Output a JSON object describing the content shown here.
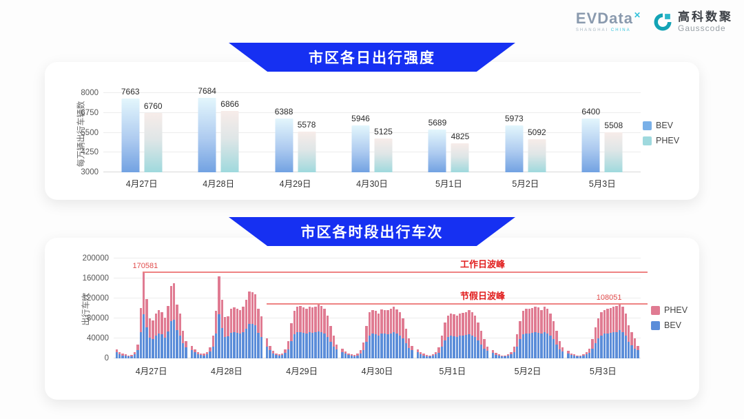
{
  "header": {
    "evdata_text": "EVData",
    "evdata_sup": "✕",
    "evdata_sub_left": "SHANGHAI ",
    "evdata_sub_right": "CHINA",
    "gausscode_cn": "高科数聚",
    "gausscode_en": "Gausscode"
  },
  "colors": {
    "banner_blue": "#1630f2",
    "bev_bottom_chart": "#5b8dd9",
    "phev_bottom_chart": "#e07b92",
    "bev_legend_top": "#79b0e8",
    "phev_legend_top": "#9fd9de",
    "peak_line_red": "#ee8282",
    "peak_text_red": "#e11d1d",
    "gausscode_teal": "#13a3b5"
  },
  "chart_data": [
    {
      "type": "bar",
      "title": "市区各日出行强度",
      "ylabel": "每万辆出行车辆数",
      "ylim": [
        3000,
        8000
      ],
      "yticks": [
        3000,
        4250,
        5500,
        6750,
        8000
      ],
      "grid": true,
      "legend_position": "right",
      "legend": [
        "BEV",
        "PHEV"
      ],
      "categories": [
        "4月27日",
        "4月28日",
        "4月29日",
        "4月30日",
        "5月1日",
        "5月2日",
        "5月3日"
      ],
      "series": [
        {
          "name": "BEV",
          "values": [
            7663,
            7684,
            6388,
            5946,
            5689,
            5973,
            6400
          ]
        },
        {
          "name": "PHEV",
          "values": [
            6760,
            6866,
            5578,
            5125,
            4825,
            5092,
            5508
          ]
        }
      ]
    },
    {
      "type": "bar",
      "subtype": "stacked-hourly",
      "title": "市区各时段出行车次",
      "ylabel": "出行车次",
      "ylim": [
        0,
        200000
      ],
      "yticks": [
        0,
        40000,
        80000,
        120000,
        160000,
        200000
      ],
      "grid": true,
      "legend_position": "right",
      "legend": [
        "PHEV",
        "BEV"
      ],
      "annotations": {
        "workday_peak": {
          "label": "工作日波峰",
          "value": 170581,
          "value_label": "170581"
        },
        "holiday_peak": {
          "label": "节假日波峰",
          "value": 108051,
          "value_label": "108051"
        }
      },
      "days": [
        {
          "label": "4月27日",
          "bev": [
            12000,
            8000,
            6000,
            5500,
            4000,
            4800,
            8000,
            17000,
            52000,
            88500,
            62000,
            41000,
            39000,
            46000,
            49000,
            48000,
            42000,
            54000,
            74000,
            77000,
            56000,
            46000,
            30000,
            22000
          ],
          "phev": [
            6000,
            4000,
            3000,
            2500,
            2000,
            2200,
            4000,
            10000,
            49000,
            82081,
            57000,
            39000,
            37000,
            44000,
            47000,
            45000,
            40000,
            51000,
            71000,
            73000,
            52000,
            43000,
            25000,
            13000
          ]
        },
        {
          "label": "4月28日",
          "bev": [
            16000,
            12000,
            8500,
            6500,
            6000,
            8000,
            14000,
            23000,
            49000,
            88000,
            61000,
            43000,
            43500,
            51000,
            53000,
            51000,
            50000,
            53000,
            60000,
            69000,
            68500,
            66000,
            51500,
            43000
          ],
          "phev": [
            9000,
            6000,
            4500,
            3500,
            3000,
            4000,
            8000,
            22000,
            46000,
            76000,
            56000,
            40000,
            40500,
            48000,
            49000,
            48000,
            47000,
            50000,
            57000,
            65000,
            64500,
            62000,
            48500,
            41000
          ]
        },
        {
          "label": "4月29日",
          "bev": [
            24000,
            16000,
            10000,
            6500,
            5200,
            6500,
            11500,
            18000,
            35000,
            48000,
            52000,
            53000,
            51000,
            50000,
            52000,
            51000,
            52000,
            54000,
            53000,
            50000,
            43000,
            33000,
            23000,
            18000
          ],
          "phev": [
            16000,
            9000,
            5000,
            3500,
            2800,
            3500,
            6500,
            17000,
            35000,
            47000,
            51000,
            52000,
            51000,
            50000,
            52000,
            51000,
            51000,
            53000,
            52000,
            49000,
            42000,
            32000,
            22000,
            10000
          ]
        },
        {
          "label": "4月30日",
          "bev": [
            13000,
            9000,
            6500,
            5200,
            4500,
            5800,
            10000,
            16500,
            33000,
            46000,
            49000,
            48000,
            45000,
            49000,
            49000,
            48000,
            50000,
            52000,
            49000,
            46000,
            40000,
            30000,
            21000,
            16000
          ],
          "phev": [
            7000,
            5000,
            3500,
            2800,
            2500,
            3200,
            6000,
            15500,
            32000,
            46000,
            48000,
            47000,
            45000,
            49000,
            48000,
            48000,
            49000,
            51000,
            49000,
            46000,
            40000,
            30000,
            19000,
            9000
          ]
        },
        {
          "label": "5月1日",
          "bev": [
            12000,
            8000,
            6000,
            4500,
            4000,
            5200,
            8000,
            11500,
            23000,
            36000,
            43000,
            45000,
            44000,
            43000,
            45000,
            46000,
            47000,
            48000,
            46000,
            43000,
            36000,
            28000,
            20000,
            15500
          ],
          "phev": [
            6000,
            4000,
            3000,
            2500,
            2000,
            2800,
            4000,
            10500,
            22000,
            36000,
            42000,
            45000,
            44000,
            43000,
            44000,
            45000,
            46000,
            48000,
            46000,
            42000,
            36000,
            27000,
            18000,
            8500
          ]
        },
        {
          "label": "5月2日",
          "bev": [
            10500,
            7000,
            5200,
            4000,
            4000,
            5200,
            8000,
            12500,
            24000,
            38000,
            48000,
            50000,
            50000,
            51000,
            52000,
            51000,
            49000,
            52000,
            50000,
            45000,
            38000,
            28000,
            18000,
            14000
          ],
          "phev": [
            5500,
            4000,
            2800,
            2000,
            2000,
            2800,
            4000,
            11500,
            24000,
            37000,
            47000,
            50000,
            49000,
            50000,
            51000,
            51000,
            48000,
            52000,
            49000,
            45000,
            37000,
            27000,
            17000,
            8000
          ]
        },
        {
          "label": "5月3日",
          "bev": [
            10000,
            6500,
            5200,
            4000,
            4000,
            5200,
            8000,
            10500,
            19500,
            31000,
            40000,
            46000,
            49000,
            50000,
            51000,
            52000,
            53000,
            56000,
            52000,
            45000,
            33000,
            26000,
            20000,
            16000
          ],
          "phev": [
            5000,
            3500,
            2800,
            2000,
            2000,
            2800,
            4000,
            9500,
            18500,
            31000,
            40000,
            46000,
            48000,
            49000,
            50000,
            51000,
            52000,
            52051,
            52000,
            45000,
            33000,
            26000,
            20000,
            9000
          ]
        }
      ]
    }
  ]
}
